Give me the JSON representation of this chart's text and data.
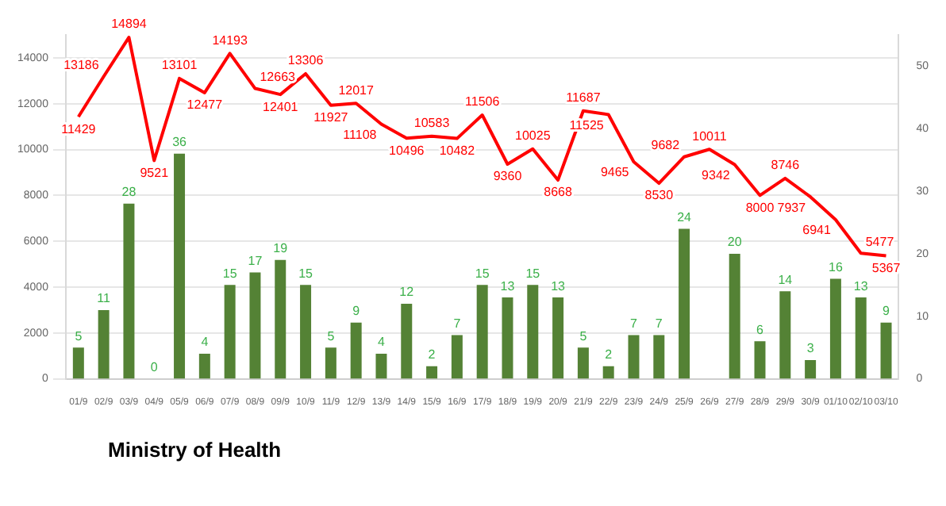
{
  "chart_data": {
    "type": "bar",
    "categories": [
      "01/9",
      "02/9",
      "03/9",
      "04/9",
      "05/9",
      "06/9",
      "07/9",
      "08/9",
      "09/9",
      "10/9",
      "11/9",
      "12/9",
      "13/9",
      "14/9",
      "15/9",
      "16/9",
      "17/9",
      "18/9",
      "19/9",
      "20/9",
      "21/9",
      "22/9",
      "23/9",
      "24/9",
      "25/9",
      "26/9",
      "27/9",
      "28/9",
      "29/9",
      "30/9",
      "01/10",
      "02/10",
      "03/10"
    ],
    "series": [
      {
        "type": "line",
        "color": "#ff0000",
        "values": [
          11429,
          13186,
          14894,
          9521,
          13101,
          12477,
          14193,
          12663,
          12401,
          13306,
          11927,
          12017,
          11108,
          10496,
          10583,
          10482,
          11506,
          9360,
          10025,
          8668,
          11687,
          11525,
          9465,
          8530,
          9682,
          10011,
          9342,
          8000,
          8746,
          7937,
          6941,
          5477,
          5367
        ]
      },
      {
        "type": "bar",
        "axis": "y2",
        "color": "#548235",
        "values": [
          5,
          11,
          28,
          0,
          36,
          4,
          15,
          17,
          19,
          15,
          5,
          9,
          4,
          12,
          2,
          7,
          15,
          13,
          15,
          13,
          5,
          2,
          7,
          7,
          24,
          null,
          20,
          6,
          14,
          3,
          16,
          13,
          9
        ],
        "value_labels": [
          "5",
          "11",
          "28",
          "0",
          "36",
          "4",
          "15",
          "17",
          "19",
          "15",
          "5",
          "9",
          "4",
          "12",
          "2",
          "7",
          "15",
          "13",
          "15",
          "13",
          "5",
          "2",
          "7",
          "7",
          "24",
          null,
          "20",
          "6",
          "14",
          "3",
          "16",
          "13",
          "9"
        ]
      }
    ],
    "data_labels": true,
    "ylim": [
      0,
      15000
    ],
    "yticks": [
      0,
      2000,
      4000,
      6000,
      8000,
      10000,
      12000,
      14000
    ],
    "y2lim": [
      0,
      55
    ],
    "y2ticks": [
      0,
      10,
      20,
      30,
      40,
      50
    ],
    "grid": "y",
    "legend": false,
    "marker": "none",
    "annotations": [
      "Ministry of Health"
    ]
  }
}
